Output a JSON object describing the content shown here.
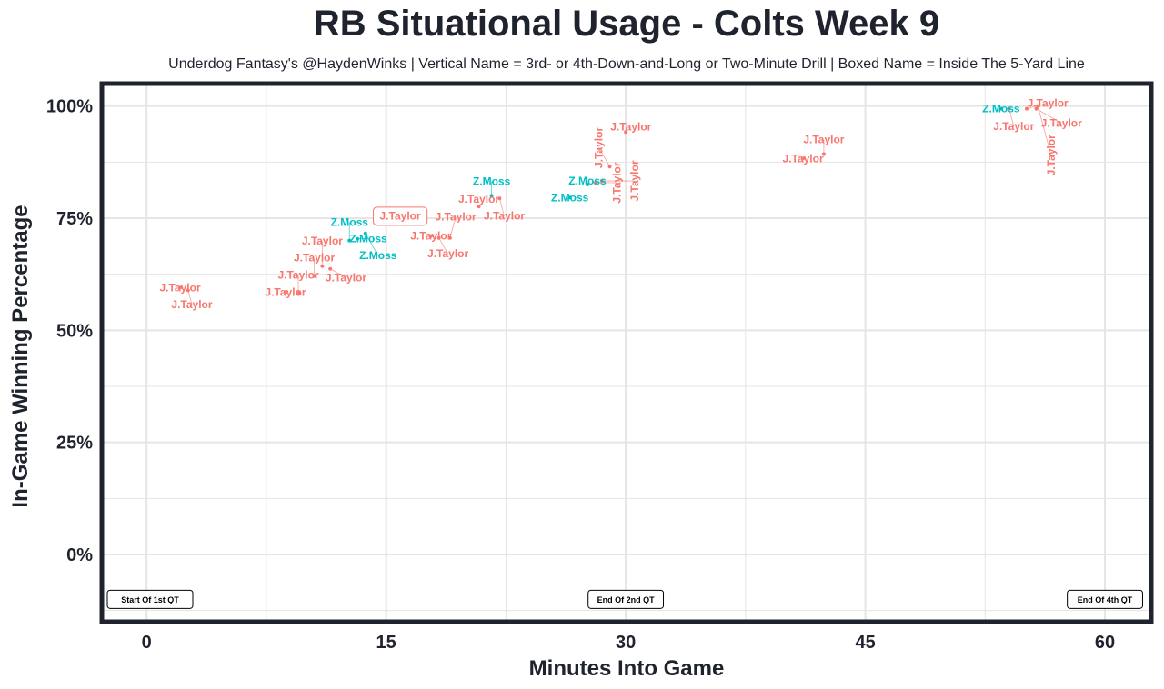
{
  "chart_data": {
    "type": "scatter",
    "title": "RB Situational Usage - Colts Week 9",
    "subtitle": "Underdog Fantasy's @HaydenWinks | Vertical Name = 3rd- or 4th-Down-and-Long or Two-Minute Drill | Boxed Name = Inside The 5-Yard Line",
    "xlabel": "Minutes Into Game",
    "ylabel": "In-Game Winning Percentage",
    "xlim": [
      -2.8,
      62.9
    ],
    "ylim": [
      -15,
      105
    ],
    "x_ticks": [
      0,
      15,
      30,
      45,
      60
    ],
    "x_tick_labels": [
      "0",
      "15",
      "30",
      "45",
      "60"
    ],
    "y_ticks": [
      0,
      25,
      50,
      75,
      100
    ],
    "y_tick_labels": [
      "0%",
      "25%",
      "50%",
      "75%",
      "100%"
    ],
    "grid": true,
    "colors": {
      "J.Taylor": "#F8766D",
      "Z.Moss": "#00BFC4",
      "text": "#1f232e",
      "grid": "#e5e5e5"
    },
    "points": [
      {
        "label": "J.Taylor",
        "x": 2.1,
        "y": 59.5
      },
      {
        "label": "J.Taylor",
        "x": 2.6,
        "y": 58.9
      },
      {
        "label": "J.Taylor",
        "x": 8.7,
        "y": 58.5
      },
      {
        "label": "J.Taylor",
        "x": 9.5,
        "y": 58.3
      },
      {
        "label": "J.Taylor",
        "x": 10.5,
        "y": 62.1
      },
      {
        "label": "J.Taylor",
        "x": 11.0,
        "y": 64.3
      },
      {
        "label": "J.Taylor",
        "x": 11.5,
        "y": 63.7
      },
      {
        "label": "Z.Moss",
        "x": 12.7,
        "y": 70.0
      },
      {
        "label": "Z.Moss",
        "x": 13.2,
        "y": 70.4
      },
      {
        "label": "Z.Moss",
        "x": 13.7,
        "y": 71.6
      },
      {
        "label": "J.Taylor",
        "x": 15.0,
        "y": 74.6,
        "boxed": true
      },
      {
        "label": "J.Taylor",
        "x": 17.8,
        "y": 71.0
      },
      {
        "label": "J.Taylor",
        "x": 18.3,
        "y": 70.6
      },
      {
        "label": "J.Taylor",
        "x": 19.0,
        "y": 70.6
      },
      {
        "label": "J.Taylor",
        "x": 20.8,
        "y": 77.6
      },
      {
        "label": "Z.Moss",
        "x": 21.6,
        "y": 80.0
      },
      {
        "label": "J.Taylor",
        "x": 22.1,
        "y": 79.4
      },
      {
        "label": "Z.Moss",
        "x": 26.5,
        "y": 79.6
      },
      {
        "label": "Z.Moss",
        "x": 27.6,
        "y": 82.5
      },
      {
        "label": "J.Taylor",
        "x": 28.1,
        "y": 82.9,
        "vertical": true
      },
      {
        "label": "J.Taylor",
        "x": 28.5,
        "y": 83.3,
        "vertical": true
      },
      {
        "label": "J.Taylor",
        "x": 29.0,
        "y": 86.5,
        "vertical": true
      },
      {
        "label": "J.Taylor",
        "x": 30.0,
        "y": 94.2
      },
      {
        "label": "J.Taylor",
        "x": 41.1,
        "y": 88.3
      },
      {
        "label": "J.Taylor",
        "x": 42.4,
        "y": 89.3
      },
      {
        "label": "Z.Moss",
        "x": 53.5,
        "y": 99.4
      },
      {
        "label": "J.Taylor",
        "x": 54.0,
        "y": 99.4
      },
      {
        "label": "J.Taylor",
        "x": 55.1,
        "y": 99.4
      },
      {
        "label": "J.Taylor",
        "x": 55.7,
        "y": 99.4
      },
      {
        "label": "J.Taylor",
        "x": 55.8,
        "y": 100.0,
        "vertical": true
      }
    ],
    "annotations": [
      {
        "text": "Start Of 1st QT",
        "x": 0,
        "y": -10
      },
      {
        "text": "End Of 2nd QT",
        "x": 30,
        "y": -10
      },
      {
        "text": "End Of 4th QT",
        "x": 60,
        "y": -10
      }
    ]
  }
}
